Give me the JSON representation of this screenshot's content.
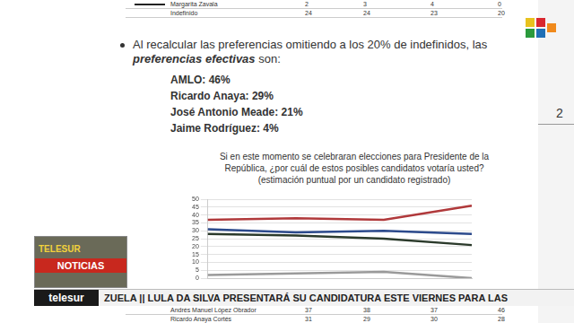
{
  "top_table": {
    "rows": [
      {
        "label": "Margarita Zavala",
        "values": [
          2,
          3,
          4,
          0
        ]
      },
      {
        "label": "Indefinido",
        "values": [
          24,
          24,
          23,
          20
        ]
      }
    ]
  },
  "slide": {
    "intro": "Al recalcular las preferencias omitiendo a los 20% de indefinidos, las",
    "intro_emphasis": "preferencias efectivas",
    "intro_end": "son:",
    "items": [
      "AMLO: 46%",
      "Ricardo Anaya: 29%",
      "José Antonio Meade: 21%",
      "Jaime Rodríguez: 4%"
    ],
    "page_number": "2"
  },
  "chart_data": {
    "type": "line",
    "title": "Si en este momento se celebraran elecciones para Presidente de la República, ¿por cuál de estos posibles candidatos votaría usted?",
    "subtitle": "(estimación puntual por un candidato registrado)",
    "categories": [
      null,
      null,
      null,
      null
    ],
    "series": [
      {
        "color": "#b0393b",
        "values": [
          37,
          38,
          37,
          46
        ]
      },
      {
        "color": "#2c4a8c",
        "values": [
          31,
          29,
          30,
          28
        ]
      },
      {
        "color": "#2b3a2b",
        "values": [
          28,
          27,
          25,
          21
        ]
      },
      {
        "color": "#9a9a9a",
        "values": [
          2,
          3,
          4,
          0
        ]
      }
    ],
    "ylim": [
      0,
      50
    ],
    "yticks": [
      0,
      5,
      10,
      15,
      20,
      25,
      30,
      35,
      40,
      45,
      50
    ],
    "grid": true,
    "tick_labels": "y"
  },
  "bottom_table": {
    "rows": [
      {
        "label": "Andrés Manuel López Obrador",
        "values": [
          37,
          38,
          37,
          46
        ]
      },
      {
        "label": "Ricardo Anaya Cortés",
        "values": [
          31,
          29,
          30,
          28
        ]
      }
    ]
  },
  "overlay": {
    "bug_top": "TELESUR",
    "bug_bottom": "NOTICIAS",
    "channel": "telesur",
    "ticker": "ZUELA || LULA DA SILVA PRESENTARÁ SU CANDIDATURA ESTE VIERNES PARA LAS"
  }
}
